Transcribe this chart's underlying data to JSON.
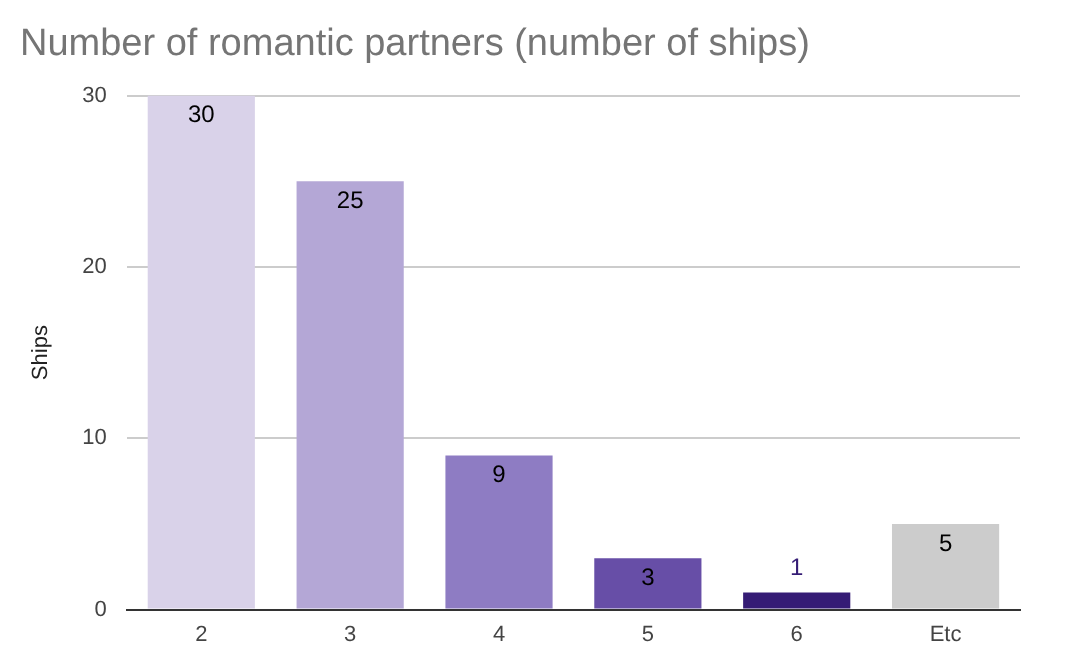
{
  "chart_data": {
    "type": "bar",
    "title": "Number of romantic partners (number of ships)",
    "ylabel": "Ships",
    "categories": [
      "2",
      "3",
      "4",
      "5",
      "6",
      "Etc"
    ],
    "values": [
      30,
      25,
      9,
      3,
      1,
      5
    ],
    "colors": [
      "#d9d2e9",
      "#b4a7d6",
      "#8e7cc3",
      "#674ea7",
      "#351c75",
      "#cccccc"
    ],
    "ylim": [
      0,
      30
    ],
    "yticks": [
      0,
      10,
      20,
      30
    ],
    "grid": "y",
    "legend": false,
    "data_labels": true
  }
}
